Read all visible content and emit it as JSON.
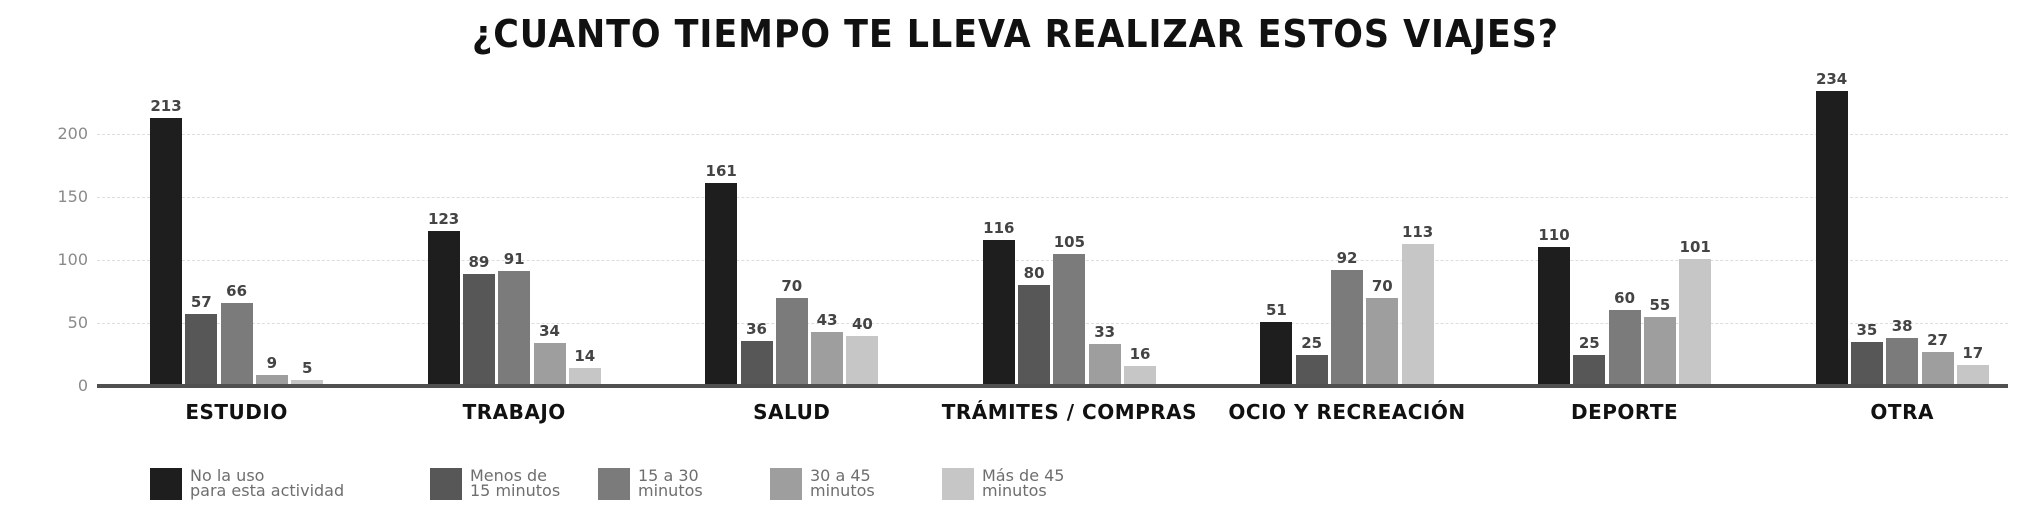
{
  "title": "¿CUANTO TIEMPO TE LLEVA REALIZAR ESTOS VIAJES?",
  "colors": [
    "#1e1e1e",
    "#575757",
    "#7b7b7b",
    "#9e9e9e",
    "#c6c6c6"
  ],
  "y_ticks": [
    "0",
    "50",
    "100",
    "150",
    "200"
  ],
  "categories": [
    "ESTUDIO",
    "TRABAJO",
    "SALUD",
    "TRÁMITES / COMPRAS",
    "OCIO Y RECREACIÓN",
    "DEPORTE",
    "OTRA"
  ],
  "legend": [
    {
      "line1": "No la uso",
      "line2": "para esta actividad"
    },
    {
      "line1": "Menos de",
      "line2": "15 minutos"
    },
    {
      "line1": "15 a 30",
      "line2": "minutos"
    },
    {
      "line1": "30 a 45",
      "line2": "minutos"
    },
    {
      "line1": "Más de 45",
      "line2": "minutos"
    }
  ],
  "chart_data": {
    "type": "bar",
    "title": "¿CUANTO TIEMPO TE LLEVA REALIZAR ESTOS VIAJES?",
    "xlabel": "",
    "ylabel": "",
    "ylim": [
      0,
      240
    ],
    "grid": true,
    "legend_position": "bottom",
    "categories": [
      "ESTUDIO",
      "TRABAJO",
      "SALUD",
      "TRÁMITES / COMPRAS",
      "OCIO Y RECREACIÓN",
      "DEPORTE",
      "OTRA"
    ],
    "series": [
      {
        "name": "No la uso para esta actividad",
        "values": [
          213,
          123,
          161,
          116,
          51,
          110,
          234
        ]
      },
      {
        "name": "Menos de 15 minutos",
        "values": [
          57,
          89,
          36,
          80,
          25,
          25,
          35
        ]
      },
      {
        "name": "15 a 30 minutos",
        "values": [
          66,
          91,
          70,
          105,
          92,
          60,
          38
        ]
      },
      {
        "name": "30 a 45 minutos",
        "values": [
          9,
          34,
          43,
          33,
          70,
          55,
          27
        ]
      },
      {
        "name": "Más de 45 minutos",
        "values": [
          5,
          14,
          40,
          16,
          113,
          101,
          17
        ]
      }
    ]
  }
}
